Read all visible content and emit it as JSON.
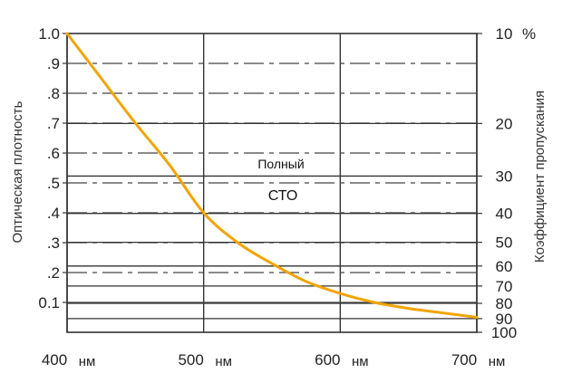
{
  "chart_data": {
    "type": "line",
    "xlabel": "",
    "ylabel": "Оптическая плотность",
    "ylabel_right": "Коэффициент пропускания",
    "x_unit": "нм",
    "xlim": [
      400,
      700
    ],
    "ylim": [
      0,
      1.0
    ],
    "x_ticks": [
      400,
      500,
      600,
      700
    ],
    "y_ticks_left": [
      {
        "value": 1.0,
        "label": "1.0"
      },
      {
        "value": 0.9,
        "label": ".9"
      },
      {
        "value": 0.8,
        "label": ".8"
      },
      {
        "value": 0.7,
        "label": ".7"
      },
      {
        "value": 0.6,
        "label": ".6"
      },
      {
        "value": 0.5,
        "label": ".5"
      },
      {
        "value": 0.4,
        "label": ".4"
      },
      {
        "value": 0.3,
        "label": ".3"
      },
      {
        "value": 0.2,
        "label": ".2"
      },
      {
        "value": 0.1,
        "label": "0.1"
      }
    ],
    "y_ticks_right": [
      {
        "transmittance": 10,
        "label": "10"
      },
      {
        "transmittance": 20,
        "label": "20"
      },
      {
        "transmittance": 30,
        "label": "30"
      },
      {
        "transmittance": 40,
        "label": "40"
      },
      {
        "transmittance": 50,
        "label": "50"
      },
      {
        "transmittance": 60,
        "label": "60"
      },
      {
        "transmittance": 70,
        "label": "70"
      },
      {
        "transmittance": 80,
        "label": "80"
      },
      {
        "transmittance": 90,
        "label": "90"
      },
      {
        "transmittance": 100,
        "label": "100"
      }
    ],
    "right_unit": "%",
    "series": [
      {
        "name": "Полный СТО",
        "color": "#f0a500",
        "x": [
          400,
          425,
          450,
          475,
          500,
          525,
          550,
          575,
          600,
          625,
          650,
          675,
          700
        ],
        "y": [
          1.0,
          0.85,
          0.7,
          0.56,
          0.4,
          0.3,
          0.23,
          0.17,
          0.13,
          0.1,
          0.08,
          0.065,
          0.05
        ]
      }
    ],
    "annotations": [
      "Полный",
      "СТО"
    ],
    "grid": true
  }
}
